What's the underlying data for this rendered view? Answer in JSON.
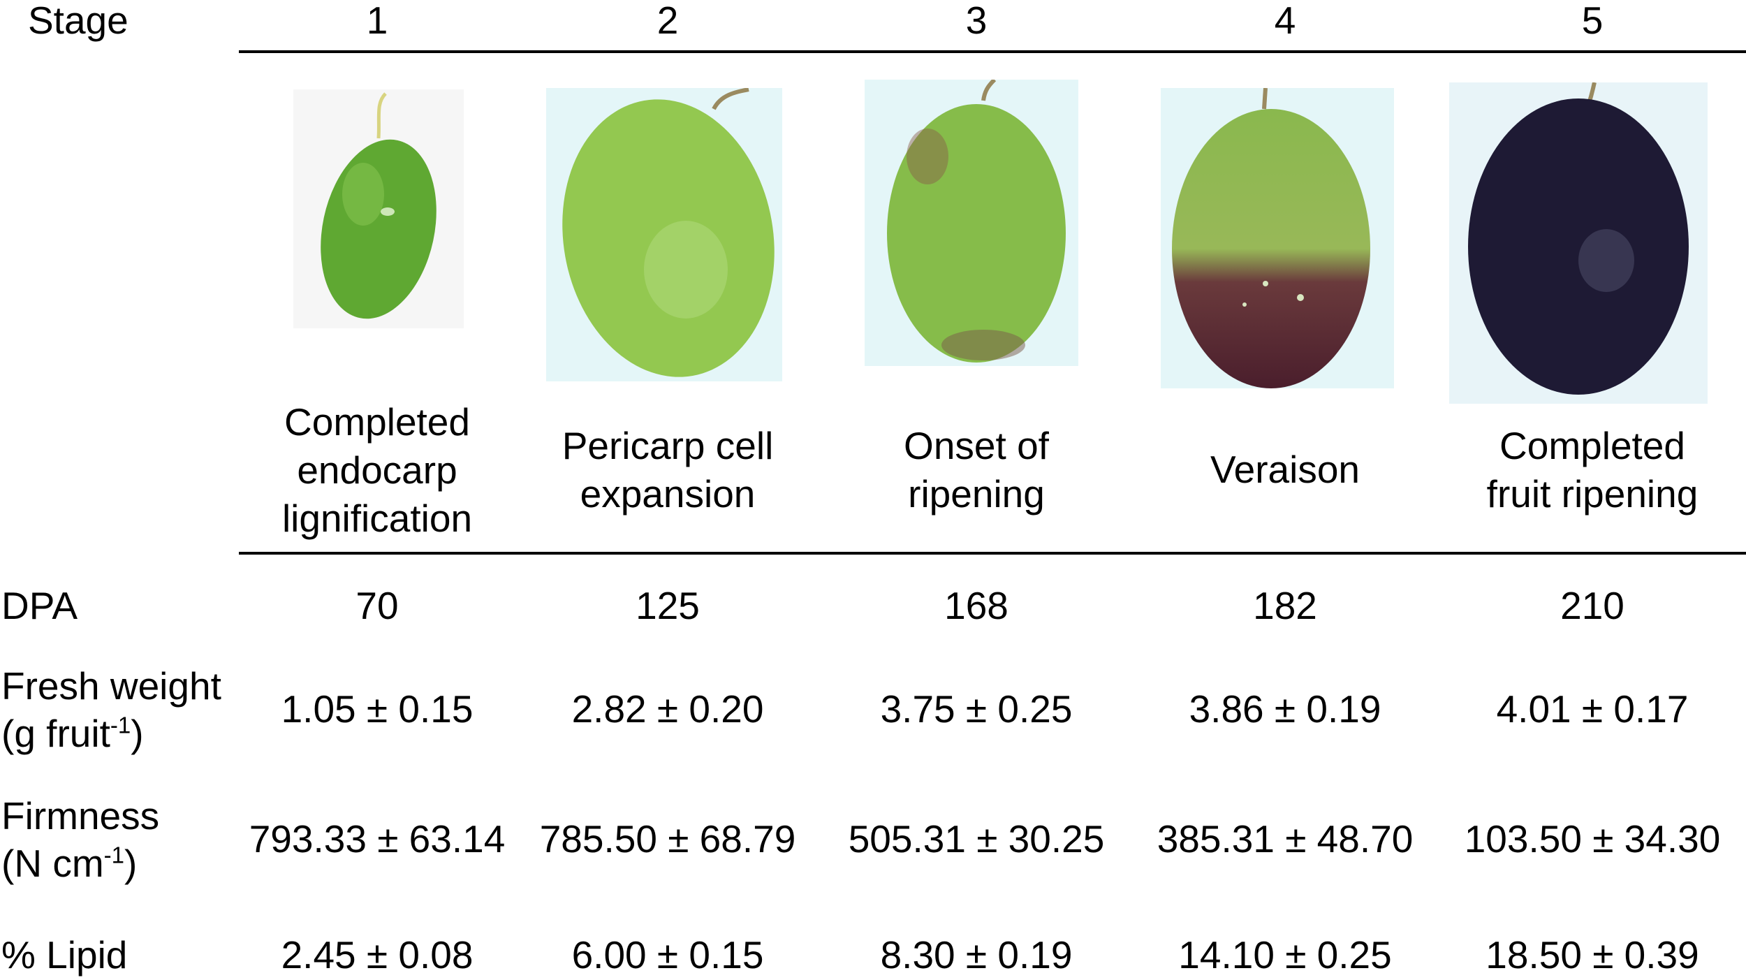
{
  "header": {
    "stage_label": "Stage"
  },
  "stages": [
    {
      "number": "1",
      "name_lines": [
        "Completed",
        "endocarp",
        "lignification"
      ],
      "dpa": "70",
      "fresh_weight": "1.05 ± 0.15",
      "firmness": "793.33 ± 63.14",
      "lipid": "2.45 ± 0.08"
    },
    {
      "number": "2",
      "name_lines": [
        "Pericarp cell",
        "expansion"
      ],
      "dpa": "125",
      "fresh_weight": "2.82 ± 0.20",
      "firmness": "785.50 ± 68.79",
      "lipid": "6.00 ± 0.15"
    },
    {
      "number": "3",
      "name_lines": [
        "Onset of",
        "ripening"
      ],
      "dpa": "168",
      "fresh_weight": "3.75 ± 0.25",
      "firmness": "505.31 ± 30.25",
      "lipid": "8.30 ± 0.19"
    },
    {
      "number": "4",
      "name_lines": [
        "Veraison"
      ],
      "dpa": "182",
      "fresh_weight": "3.86 ± 0.19",
      "firmness": "385.31 ± 48.70",
      "lipid": "14.10 ± 0.25"
    },
    {
      "number": "5",
      "name_lines": [
        "Completed",
        "fruit ripening"
      ],
      "dpa": "210",
      "fresh_weight": "4.01 ± 0.17",
      "firmness": "103.50 ± 34.30",
      "lipid": "18.50 ± 0.39"
    }
  ],
  "row_labels": {
    "dpa": "DPA",
    "fresh_weight_line1": "Fresh weight",
    "fresh_weight_line2_prefix": "(g fruit",
    "fresh_weight_sup": "-1",
    "fresh_weight_line2_suffix": ")",
    "firmness_line1": "Firmness",
    "firmness_line2_prefix": "(N cm",
    "firmness_sup": "-1",
    "firmness_line2_suffix": ")",
    "lipid": "% Lipid"
  },
  "colors": {
    "stage1_fruit": "#5fa832",
    "stage2_fruit": "#93c850",
    "stage3_fruit": "#86bc4a",
    "stage4_top": "#8ab84e",
    "stage4_bottom": "#4a1e2c",
    "stage5_fruit": "#1e1a34",
    "photo_bg": "#e4f6f8"
  }
}
